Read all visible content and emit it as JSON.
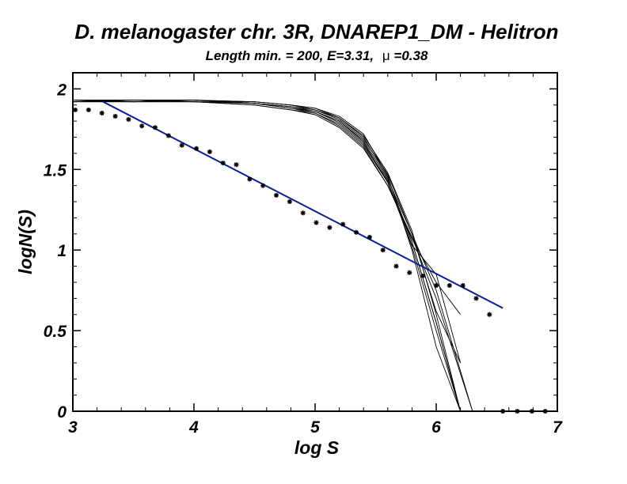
{
  "chart_data": {
    "type": "scatter",
    "title": "D. melanogaster chr. 3R, DNAREP1_DM - Helitron",
    "subtitle_prefix": "Length min. = 200, E=3.31,",
    "subtitle_mu_symbol": "μ",
    "subtitle_mu_value": "=0.38",
    "xlabel": "log S",
    "ylabel": "logN(S)",
    "xlim": [
      3,
      7
    ],
    "ylim": [
      0,
      2.1
    ],
    "x_ticks": [
      3,
      4,
      5,
      6,
      7
    ],
    "x_tick_labels": [
      "3",
      "4",
      "5",
      "6",
      "7"
    ],
    "y_ticks": [
      0,
      0.5,
      1,
      1.5,
      2
    ],
    "y_tick_labels": [
      "0",
      "0.5",
      "1",
      "1.5",
      "2"
    ],
    "grid": false,
    "colors": {
      "points": "#000000",
      "fit_line": "#0b1f9a",
      "simulations": "#000000",
      "axes": "#000000"
    },
    "observed_points": {
      "x": [
        3.02,
        3.13,
        3.24,
        3.35,
        3.46,
        3.57,
        3.68,
        3.79,
        3.9,
        4.02,
        4.13,
        4.24,
        4.35,
        4.46,
        4.57,
        4.68,
        4.79,
        4.9,
        5.01,
        5.12,
        5.23,
        5.34,
        5.45,
        5.56,
        5.67,
        5.78,
        5.89,
        6.0,
        6.11,
        6.22,
        6.33,
        6.44,
        6.55,
        6.67,
        6.79,
        6.9
      ],
      "y": [
        1.87,
        1.87,
        1.85,
        1.83,
        1.81,
        1.77,
        1.76,
        1.71,
        1.65,
        1.63,
        1.61,
        1.54,
        1.53,
        1.44,
        1.4,
        1.34,
        1.3,
        1.23,
        1.17,
        1.14,
        1.16,
        1.11,
        1.08,
        1.0,
        0.9,
        0.86,
        0.84,
        0.78,
        0.78,
        0.78,
        0.7,
        0.6,
        0.0,
        0.0,
        0.0,
        0.0
      ]
    },
    "fit_line": {
      "x": [
        3.25,
        6.55
      ],
      "y": [
        1.92,
        0.64
      ]
    },
    "simulations": [
      {
        "x": [
          3.0,
          3.5,
          4.0,
          4.5,
          4.8,
          5.0,
          5.2,
          5.4,
          5.6,
          5.8,
          6.0,
          6.2
        ],
        "y": [
          1.93,
          1.93,
          1.93,
          1.92,
          1.9,
          1.88,
          1.82,
          1.7,
          1.45,
          1.05,
          0.55,
          0.0
        ]
      },
      {
        "x": [
          3.0,
          3.5,
          4.0,
          4.5,
          4.8,
          5.0,
          5.2,
          5.4,
          5.6,
          5.8,
          6.0,
          6.2
        ],
        "y": [
          1.92,
          1.93,
          1.93,
          1.91,
          1.88,
          1.85,
          1.78,
          1.65,
          1.42,
          1.05,
          0.55,
          0.0
        ]
      },
      {
        "x": [
          3.0,
          3.5,
          4.0,
          4.5,
          4.8,
          5.0,
          5.2,
          5.4,
          5.6,
          5.8,
          6.0,
          6.3
        ],
        "y": [
          1.92,
          1.92,
          1.92,
          1.9,
          1.87,
          1.84,
          1.76,
          1.63,
          1.4,
          1.08,
          0.7,
          0.0
        ]
      },
      {
        "x": [
          3.0,
          3.5,
          4.0,
          4.5,
          4.8,
          5.0,
          5.2,
          5.4,
          5.6,
          5.8,
          6.0,
          6.2
        ],
        "y": [
          1.93,
          1.92,
          1.93,
          1.91,
          1.88,
          1.86,
          1.8,
          1.68,
          1.44,
          1.1,
          0.62,
          0.3
        ]
      },
      {
        "x": [
          3.0,
          3.5,
          4.0,
          4.5,
          4.8,
          5.0,
          5.2,
          5.4,
          5.6,
          5.8,
          6.0,
          6.2
        ],
        "y": [
          1.92,
          1.93,
          1.92,
          1.92,
          1.9,
          1.87,
          1.82,
          1.71,
          1.48,
          1.12,
          0.6,
          0.0
        ]
      },
      {
        "x": [
          3.0,
          3.5,
          4.0,
          4.5,
          4.8,
          5.0,
          5.2,
          5.4,
          5.6,
          5.8,
          6.0,
          6.2
        ],
        "y": [
          1.93,
          1.92,
          1.93,
          1.91,
          1.89,
          1.86,
          1.79,
          1.66,
          1.43,
          1.02,
          0.5,
          0.0
        ]
      },
      {
        "x": [
          3.0,
          3.5,
          4.0,
          4.5,
          4.8,
          5.0,
          5.2,
          5.4,
          5.6,
          5.8,
          6.0,
          6.2
        ],
        "y": [
          1.92,
          1.92,
          1.92,
          1.9,
          1.87,
          1.85,
          1.77,
          1.64,
          1.4,
          1.07,
          0.8,
          0.6
        ]
      },
      {
        "x": [
          3.0,
          3.5,
          4.0,
          4.5,
          4.8,
          5.0,
          5.2,
          5.4,
          5.6,
          5.8,
          6.0,
          6.2
        ],
        "y": [
          1.93,
          1.93,
          1.93,
          1.92,
          1.9,
          1.88,
          1.83,
          1.72,
          1.46,
          1.0,
          0.4,
          0.0
        ]
      },
      {
        "x": [
          3.0,
          3.5,
          4.0,
          4.5,
          4.8,
          5.0,
          5.2,
          5.4,
          5.6,
          5.8,
          6.0,
          6.3
        ],
        "y": [
          1.92,
          1.93,
          1.92,
          1.91,
          1.89,
          1.87,
          1.81,
          1.69,
          1.47,
          1.1,
          0.75,
          0.0
        ]
      },
      {
        "x": [
          3.0,
          3.5,
          4.0,
          4.5,
          4.8,
          5.0,
          5.2,
          5.4,
          5.6,
          5.8,
          6.0,
          6.2
        ],
        "y": [
          1.93,
          1.92,
          1.93,
          1.91,
          1.88,
          1.86,
          1.8,
          1.67,
          1.42,
          1.03,
          0.85,
          0.3
        ]
      }
    ]
  }
}
